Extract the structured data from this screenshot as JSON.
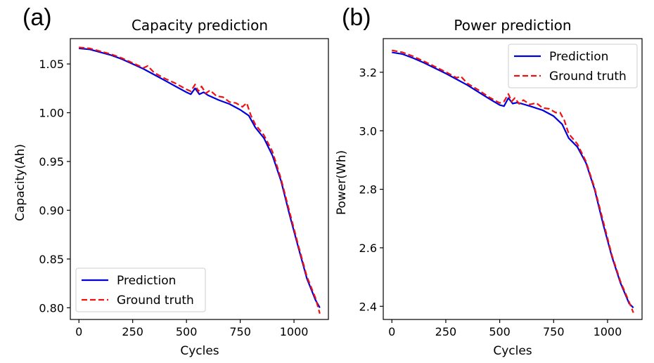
{
  "chart_data": [
    {
      "type": "line",
      "panel_label": "(a)",
      "title": "Capacity prediction",
      "xlabel": "Cycles",
      "ylabel": "Capacity(Ah)",
      "xlim": [
        -40,
        1160
      ],
      "ylim": [
        0.788,
        1.076
      ],
      "xticks": [
        0,
        250,
        500,
        750,
        1000
      ],
      "yticks": [
        0.8,
        0.85,
        0.9,
        0.95,
        1.0,
        1.05
      ],
      "ytick_labels": [
        "0.80",
        "0.85",
        "0.90",
        "0.95",
        "1.00",
        "1.05"
      ],
      "legend_position": "lower-left",
      "series": [
        {
          "name": "Prediction",
          "color": "#0000dd",
          "style": "solid",
          "x": [
            0,
            50,
            100,
            150,
            200,
            250,
            300,
            350,
            400,
            450,
            500,
            520,
            540,
            560,
            580,
            600,
            650,
            700,
            750,
            790,
            820,
            860,
            900,
            940,
            980,
            1020,
            1060,
            1100,
            1120
          ],
          "y": [
            1.066,
            1.065,
            1.062,
            1.059,
            1.055,
            1.05,
            1.045,
            1.039,
            1.033,
            1.027,
            1.021,
            1.019,
            1.025,
            1.019,
            1.021,
            1.018,
            1.013,
            1.009,
            1.003,
            0.997,
            0.985,
            0.974,
            0.956,
            0.93,
            0.895,
            0.862,
            0.83,
            0.808,
            0.8
          ]
        },
        {
          "name": "Ground truth",
          "color": "#ee1111",
          "style": "dashed",
          "x": [
            0,
            50,
            100,
            150,
            200,
            250,
            300,
            320,
            350,
            400,
            450,
            500,
            520,
            540,
            555,
            570,
            590,
            610,
            640,
            670,
            700,
            730,
            760,
            780,
            800,
            820,
            860,
            900,
            940,
            980,
            1020,
            1060,
            1100,
            1120
          ],
          "y": [
            1.067,
            1.066,
            1.063,
            1.06,
            1.056,
            1.051,
            1.046,
            1.048,
            1.041,
            1.035,
            1.03,
            1.024,
            1.022,
            1.029,
            1.022,
            1.027,
            1.02,
            1.023,
            1.017,
            1.016,
            1.011,
            1.01,
            1.006,
            1.01,
            0.997,
            0.988,
            0.977,
            0.96,
            0.932,
            0.898,
            0.864,
            0.832,
            0.81,
            0.794
          ]
        }
      ]
    },
    {
      "type": "line",
      "panel_label": "(b)",
      "title": "Power prediction",
      "xlabel": "Cycles",
      "ylabel": "Power(Wh)",
      "xlim": [
        -40,
        1160
      ],
      "ylim": [
        2.355,
        3.315
      ],
      "xticks": [
        0,
        250,
        500,
        750,
        1000
      ],
      "yticks": [
        2.4,
        2.6,
        2.8,
        3.0,
        3.2
      ],
      "ytick_labels": [
        "2.4",
        "2.6",
        "2.8",
        "3.0",
        "3.2"
      ],
      "legend_position": "top-right",
      "series": [
        {
          "name": "Prediction",
          "color": "#0000dd",
          "style": "solid",
          "x": [
            0,
            50,
            100,
            150,
            200,
            250,
            300,
            350,
            400,
            450,
            500,
            520,
            540,
            560,
            580,
            600,
            650,
            700,
            750,
            790,
            820,
            860,
            900,
            940,
            980,
            1020,
            1060,
            1100,
            1120
          ],
          "y": [
            3.268,
            3.262,
            3.248,
            3.232,
            3.214,
            3.196,
            3.176,
            3.156,
            3.133,
            3.11,
            3.088,
            3.084,
            3.112,
            3.093,
            3.096,
            3.093,
            3.082,
            3.07,
            3.05,
            3.022,
            2.975,
            2.945,
            2.89,
            2.8,
            2.68,
            2.57,
            2.48,
            2.41,
            2.395
          ]
        },
        {
          "name": "Ground truth",
          "color": "#ee1111",
          "style": "dashed",
          "x": [
            0,
            50,
            100,
            150,
            200,
            250,
            300,
            320,
            350,
            400,
            450,
            500,
            520,
            540,
            555,
            570,
            590,
            610,
            640,
            670,
            700,
            730,
            760,
            780,
            800,
            820,
            860,
            900,
            940,
            980,
            1020,
            1060,
            1100,
            1120
          ],
          "y": [
            3.275,
            3.268,
            3.254,
            3.237,
            3.219,
            3.201,
            3.181,
            3.186,
            3.162,
            3.14,
            3.115,
            3.095,
            3.1,
            3.126,
            3.1,
            3.112,
            3.092,
            3.105,
            3.09,
            3.095,
            3.078,
            3.075,
            3.062,
            3.062,
            3.035,
            2.99,
            2.955,
            2.895,
            2.805,
            2.69,
            2.575,
            2.485,
            2.415,
            2.378
          ]
        }
      ]
    }
  ]
}
